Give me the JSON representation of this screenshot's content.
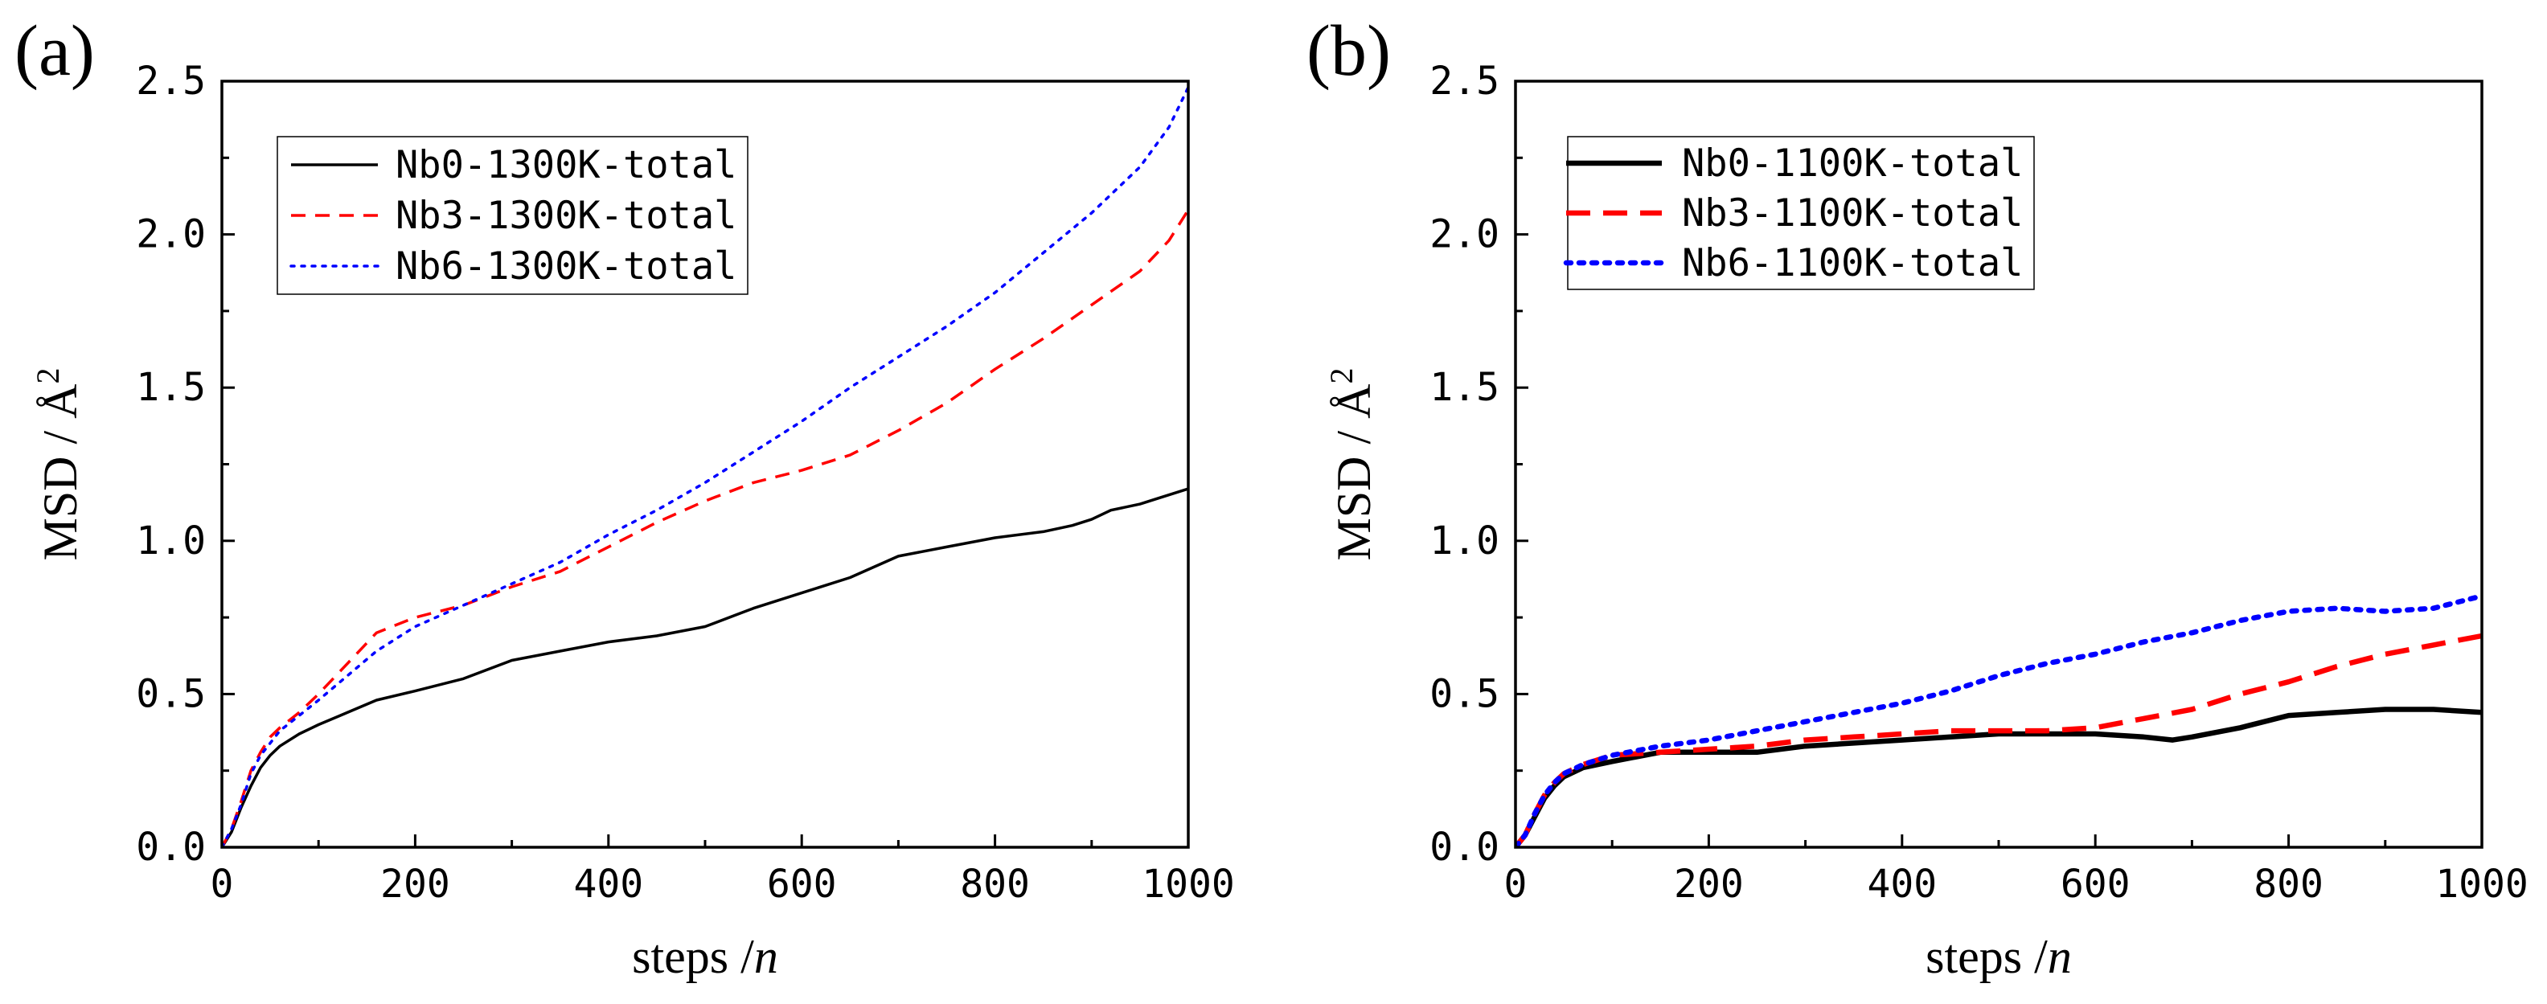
{
  "chart_data": [
    {
      "type": "line",
      "panel_label": "(a)",
      "xlabel": "steps /",
      "xlabel_var": "n",
      "ylabel": "MSD / Å",
      "ylabel_sup": "2",
      "xlim": [
        0,
        1000
      ],
      "ylim": [
        0,
        2.5
      ],
      "xticks": [
        "0",
        "200",
        "400",
        "600",
        "800",
        "1000"
      ],
      "yticks": [
        "0.0",
        "0.5",
        "1.0",
        "1.5",
        "2.0",
        "2.5"
      ],
      "legend_position": "top-left",
      "series": [
        {
          "name": "Nb0-1300K-total",
          "color": "#000000",
          "style": "solid",
          "x": [
            0,
            10,
            20,
            30,
            40,
            50,
            60,
            80,
            100,
            130,
            160,
            200,
            250,
            300,
            350,
            400,
            450,
            500,
            550,
            600,
            650,
            700,
            750,
            800,
            850,
            880,
            900,
            920,
            950,
            970,
            1000
          ],
          "y": [
            0,
            0.05,
            0.13,
            0.2,
            0.26,
            0.3,
            0.33,
            0.37,
            0.4,
            0.44,
            0.48,
            0.51,
            0.55,
            0.61,
            0.64,
            0.67,
            0.69,
            0.72,
            0.78,
            0.83,
            0.88,
            0.95,
            0.98,
            1.01,
            1.03,
            1.05,
            1.07,
            1.1,
            1.12,
            1.14,
            1.17
          ]
        },
        {
          "name": "Nb3-1300K-total",
          "color": "#ff0000",
          "style": "dashed",
          "x": [
            0,
            10,
            20,
            30,
            40,
            50,
            60,
            80,
            100,
            130,
            160,
            200,
            250,
            300,
            350,
            400,
            450,
            500,
            550,
            600,
            650,
            700,
            750,
            800,
            850,
            900,
            950,
            980,
            1000
          ],
          "y": [
            0,
            0.06,
            0.15,
            0.25,
            0.31,
            0.36,
            0.39,
            0.44,
            0.5,
            0.6,
            0.7,
            0.75,
            0.79,
            0.85,
            0.9,
            0.98,
            1.06,
            1.13,
            1.19,
            1.23,
            1.28,
            1.36,
            1.45,
            1.56,
            1.66,
            1.77,
            1.88,
            1.98,
            2.08
          ]
        },
        {
          "name": "Nb6-1300K-total",
          "color": "#0000ff",
          "style": "dotted",
          "x": [
            0,
            10,
            20,
            30,
            40,
            50,
            60,
            80,
            100,
            130,
            160,
            200,
            250,
            300,
            350,
            400,
            450,
            500,
            550,
            600,
            650,
            700,
            750,
            800,
            850,
            900,
            950,
            980,
            1000
          ],
          "y": [
            0,
            0.06,
            0.14,
            0.24,
            0.3,
            0.34,
            0.38,
            0.43,
            0.48,
            0.56,
            0.64,
            0.72,
            0.79,
            0.86,
            0.93,
            1.02,
            1.1,
            1.19,
            1.29,
            1.39,
            1.5,
            1.6,
            1.7,
            1.81,
            1.94,
            2.07,
            2.22,
            2.35,
            2.48
          ]
        }
      ]
    },
    {
      "type": "line",
      "panel_label": "(b)",
      "xlabel": "steps /",
      "xlabel_var": "n",
      "ylabel": "MSD / Å",
      "ylabel_sup": "2",
      "xlim": [
        0,
        1000
      ],
      "ylim": [
        0,
        2.5
      ],
      "xticks": [
        "0",
        "200",
        "400",
        "600",
        "800",
        "1000"
      ],
      "yticks": [
        "0.0",
        "0.5",
        "1.0",
        "1.5",
        "2.0",
        "2.5"
      ],
      "legend_position": "top-left",
      "series": [
        {
          "name": "Nb0-1100K-total",
          "color": "#000000",
          "style": "solid",
          "x": [
            0,
            10,
            20,
            30,
            40,
            50,
            70,
            100,
            150,
            200,
            250,
            300,
            350,
            400,
            450,
            500,
            550,
            600,
            650,
            680,
            700,
            750,
            800,
            850,
            900,
            950,
            1000
          ],
          "y": [
            0,
            0.04,
            0.1,
            0.16,
            0.2,
            0.23,
            0.26,
            0.28,
            0.31,
            0.31,
            0.31,
            0.33,
            0.34,
            0.35,
            0.36,
            0.37,
            0.37,
            0.37,
            0.36,
            0.35,
            0.36,
            0.39,
            0.43,
            0.44,
            0.45,
            0.45,
            0.44
          ]
        },
        {
          "name": "Nb3-1100K-total",
          "color": "#ff0000",
          "style": "dashed",
          "x": [
            0,
            10,
            20,
            30,
            40,
            50,
            70,
            100,
            150,
            200,
            250,
            300,
            350,
            400,
            450,
            500,
            550,
            600,
            650,
            700,
            750,
            800,
            850,
            900,
            950,
            1000
          ],
          "y": [
            0,
            0.04,
            0.11,
            0.17,
            0.21,
            0.24,
            0.27,
            0.3,
            0.31,
            0.32,
            0.33,
            0.35,
            0.36,
            0.37,
            0.38,
            0.38,
            0.38,
            0.39,
            0.42,
            0.45,
            0.5,
            0.54,
            0.59,
            0.63,
            0.66,
            0.69
          ]
        },
        {
          "name": "Nb6-1100K-total",
          "color": "#0000ff",
          "style": "dotted",
          "x": [
            0,
            10,
            20,
            30,
            40,
            50,
            70,
            100,
            150,
            200,
            250,
            300,
            350,
            400,
            450,
            500,
            550,
            600,
            650,
            700,
            750,
            800,
            850,
            900,
            950,
            1000
          ],
          "y": [
            0,
            0.04,
            0.11,
            0.17,
            0.21,
            0.24,
            0.27,
            0.3,
            0.33,
            0.35,
            0.38,
            0.41,
            0.44,
            0.47,
            0.51,
            0.56,
            0.6,
            0.63,
            0.67,
            0.7,
            0.74,
            0.77,
            0.78,
            0.77,
            0.78,
            0.82
          ]
        }
      ]
    }
  ]
}
